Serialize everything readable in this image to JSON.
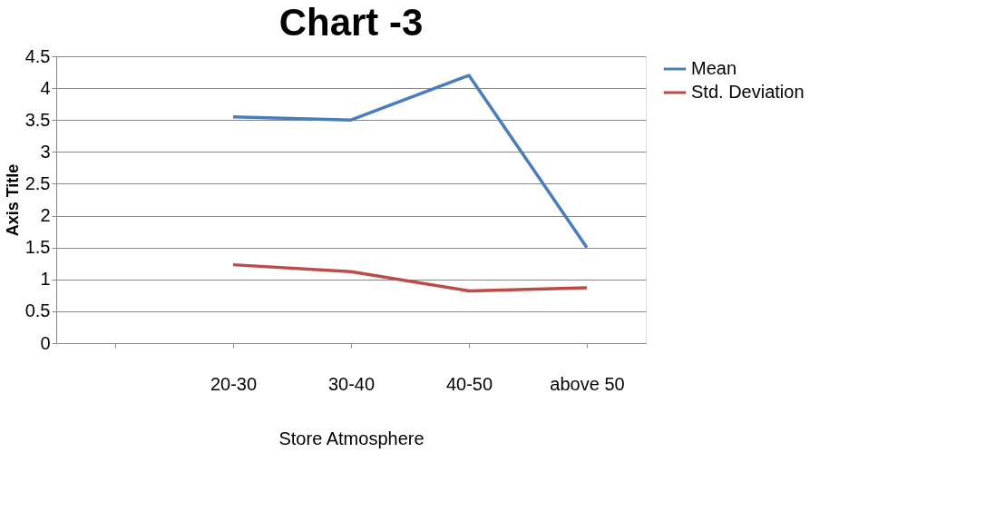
{
  "chart_data": {
    "type": "line",
    "title": "Chart -3",
    "xlabel": "Store Atmosphere",
    "ylabel": "Axis Title",
    "categories": [
      null,
      "20-30",
      "30-40",
      "40-50",
      "above 50"
    ],
    "series": [
      {
        "name": "Mean",
        "color": "#4a7ebb",
        "values": [
          null,
          3.55,
          3.5,
          4.2,
          1.5
        ]
      },
      {
        "name": "Std. Deviation",
        "color": "#be4b48",
        "values": [
          null,
          1.23,
          1.12,
          0.82,
          0.87
        ]
      }
    ],
    "ylim": [
      0,
      4.5
    ],
    "yticks": [
      0,
      0.5,
      1,
      1.5,
      2,
      2.5,
      3,
      3.5,
      4,
      4.5
    ],
    "grid": "y",
    "legend": "right",
    "marker": "none",
    "line_style": "solid"
  }
}
